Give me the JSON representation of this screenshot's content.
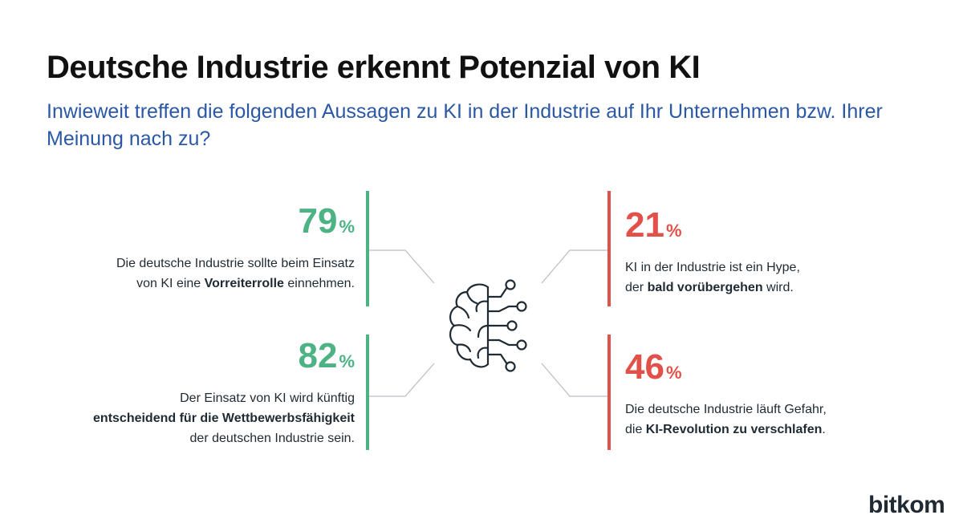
{
  "header": {
    "title": "Deutsche Industrie erkennt Potenzial von KI",
    "subtitle": "Inwieweit treffen die folgenden Aussagen zu KI in der Industrie auf Ihr Unternehmen bzw. Ihrer Meinung nach zu?"
  },
  "colors": {
    "agree": "#4db385",
    "critical": "#e2504a",
    "subtitle": "#2b58a6"
  },
  "stats": {
    "vorreiter": {
      "value": "79",
      "unit": "%",
      "text_1": "Die deutsche Industrie sollte beim Einsatz",
      "text_2_pre": "von KI eine ",
      "text_2_bold": "Vorreiterrolle",
      "text_2_post": " einnehmen."
    },
    "wettbewerb": {
      "value": "82",
      "unit": "%",
      "text_1": "Der Einsatz von KI wird künftig",
      "text_2_bold": "entscheidend für die Wettbewerbsfähigkeit",
      "text_3": "der deutschen Industrie sein."
    },
    "hype": {
      "value": "21",
      "unit": "%",
      "text_1": "KI in der Industrie ist ein Hype,",
      "text_2_pre": "der ",
      "text_2_bold": "bald vorübergehen",
      "text_2_post": " wird."
    },
    "verschlafen": {
      "value": "46",
      "unit": "%",
      "text_1": "Die deutsche Industrie läuft Gefahr,",
      "text_2_pre": "die ",
      "text_2_bold": "KI-Revolution zu verschlafen",
      "text_2_post": "."
    }
  },
  "center_icon": "brain-circuit-icon",
  "logo": {
    "text": "bitkom"
  }
}
